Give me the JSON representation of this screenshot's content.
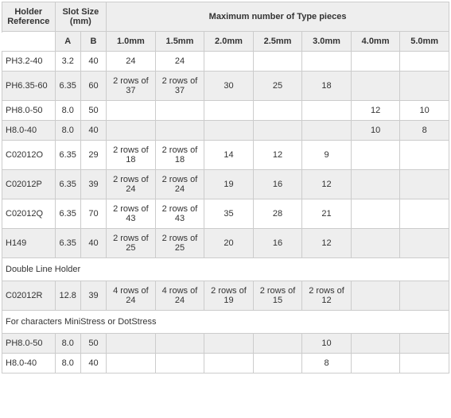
{
  "headers": {
    "holder_ref": "Holder Reference",
    "slot_size": "Slot Size (mm)",
    "max_pieces": "Maximum number of Type pieces",
    "a": "A",
    "b": "B",
    "sizes": [
      "1.0mm",
      "1.5mm",
      "2.0mm",
      "2.5mm",
      "3.0mm",
      "4.0mm",
      "5.0mm"
    ]
  },
  "rows": [
    {
      "type": "data",
      "stripe": "odd",
      "ref": "PH3.2-40",
      "a": "3.2",
      "b": "40",
      "v": [
        "24",
        "24",
        "",
        "",
        "",
        "",
        ""
      ]
    },
    {
      "type": "data",
      "stripe": "even",
      "ref": "PH6.35-60",
      "a": "6.35",
      "b": "60",
      "v": [
        "2 rows of 37",
        "2 rows of 37",
        "30",
        "25",
        "18",
        "",
        ""
      ]
    },
    {
      "type": "data",
      "stripe": "odd",
      "ref": "PH8.0-50",
      "a": "8.0",
      "b": "50",
      "v": [
        "",
        "",
        "",
        "",
        "",
        "12",
        "10"
      ]
    },
    {
      "type": "data",
      "stripe": "even",
      "ref": "H8.0-40",
      "a": "8.0",
      "b": "40",
      "v": [
        "",
        "",
        "",
        "",
        "",
        "10",
        "8"
      ]
    },
    {
      "type": "data",
      "stripe": "odd",
      "ref": "C02012O",
      "a": "6.35",
      "b": "29",
      "v": [
        "2 rows of 18",
        "2 rows of 18",
        "14",
        "12",
        "9",
        "",
        ""
      ]
    },
    {
      "type": "data",
      "stripe": "even",
      "ref": "C02012P",
      "a": "6.35",
      "b": "39",
      "v": [
        "2 rows of 24",
        "2 rows of 24",
        "19",
        "16",
        "12",
        "",
        ""
      ]
    },
    {
      "type": "data",
      "stripe": "odd",
      "ref": "C02012Q",
      "a": "6.35",
      "b": "70",
      "v": [
        "2 rows of 43",
        "2 rows of 43",
        "35",
        "28",
        "21",
        "",
        ""
      ]
    },
    {
      "type": "data",
      "stripe": "even",
      "ref": "H149",
      "a": "6.35",
      "b": "40",
      "v": [
        "2 rows of 25",
        "2 rows of 25",
        "20",
        "16",
        "12",
        "",
        ""
      ]
    },
    {
      "type": "section",
      "label": "Double Line Holder"
    },
    {
      "type": "data",
      "stripe": "even",
      "ref": "C02012R",
      "a": "12.8",
      "b": "39",
      "v": [
        "4 rows of 24",
        "4 rows of 24",
        "2 rows of 19",
        "2 rows of 15",
        "2 rows of 12",
        "",
        ""
      ]
    },
    {
      "type": "section",
      "label": "For characters  MiniStress or DotStress"
    },
    {
      "type": "data",
      "stripe": "even",
      "ref": "PH8.0-50",
      "a": "8.0",
      "b": "50",
      "v": [
        "",
        "",
        "",
        "",
        "10",
        "",
        ""
      ]
    },
    {
      "type": "data",
      "stripe": "odd",
      "ref": "H8.0-40",
      "a": "8.0",
      "b": "40",
      "v": [
        "",
        "",
        "",
        "",
        "8",
        "",
        ""
      ]
    }
  ]
}
